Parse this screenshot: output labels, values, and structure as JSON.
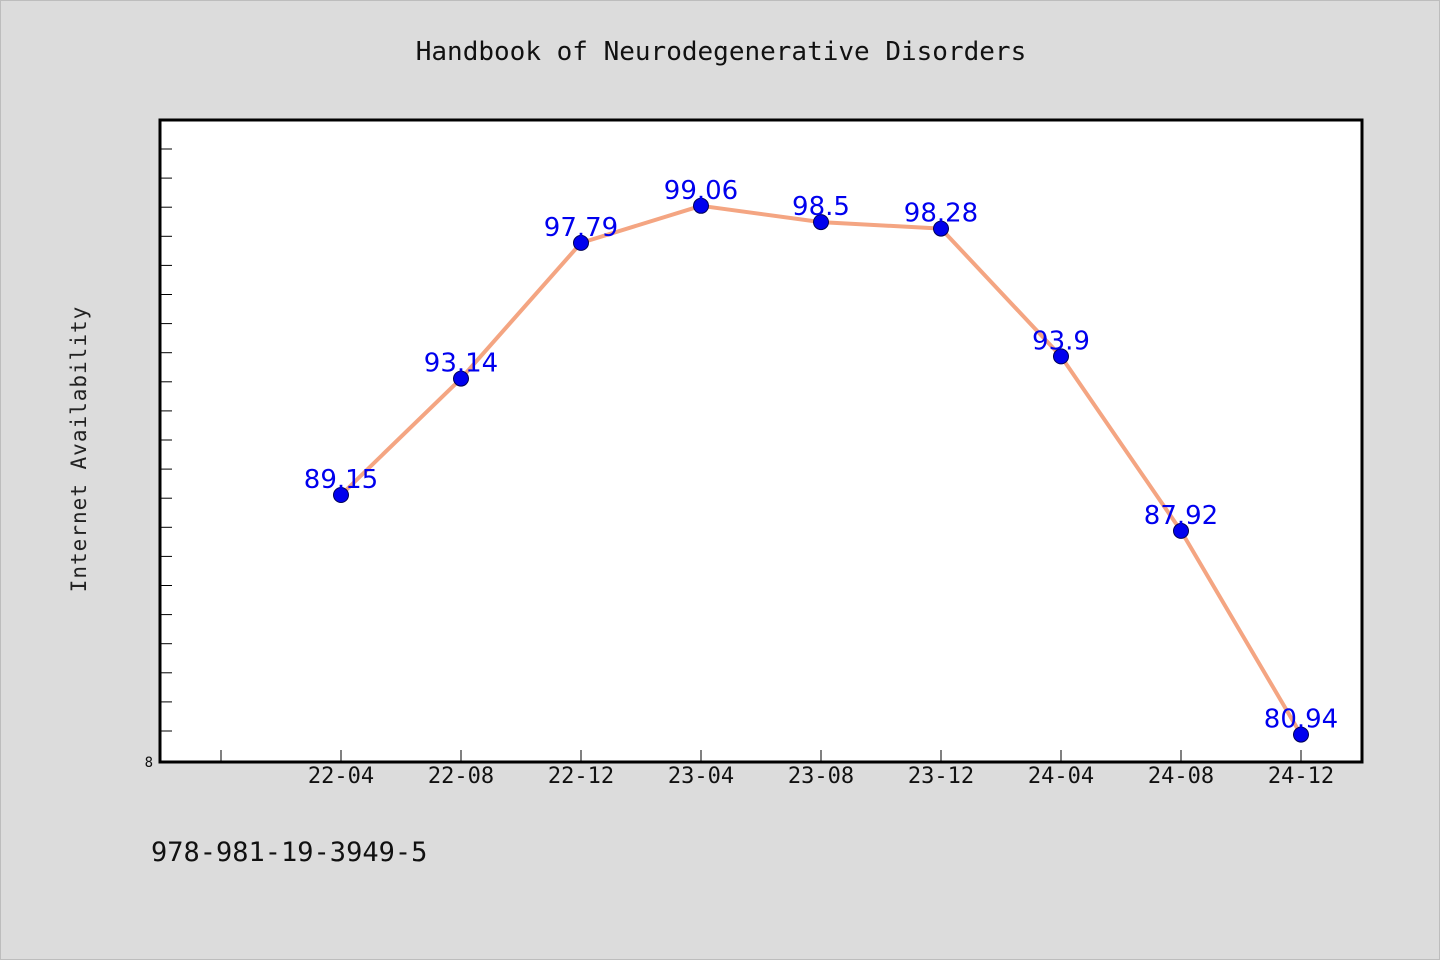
{
  "chart_data": {
    "type": "line",
    "title": "Handbook of Neurodegenerative Disorders",
    "xlabel": "",
    "ylabel": "Internet Availability",
    "categories": [
      "22-04",
      "22-08",
      "22-12",
      "23-04",
      "23-08",
      "23-12",
      "24-04",
      "24-08",
      "24-12"
    ],
    "series": [
      {
        "values": [
          89.15,
          93.14,
          97.79,
          99.06,
          98.5,
          98.28,
          93.9,
          87.92,
          80.94
        ],
        "labels": [
          "89.15",
          "93.14",
          "97.79",
          "99.06",
          "98.5",
          "98.28",
          "93.9",
          "87.92",
          "80.94"
        ]
      }
    ],
    "y_min_label": "8",
    "ylim": [
      80,
      102
    ],
    "grid": false,
    "legend": "none",
    "line_color": "#f4a582",
    "marker_color": "#0000ee",
    "label_color": "#0000ee"
  },
  "footer": {
    "code": "978-981-19-3949-5"
  }
}
